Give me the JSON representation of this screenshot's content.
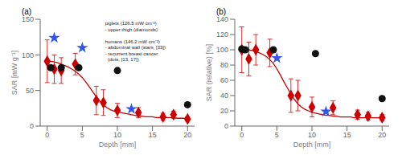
{
  "chart_data": [
    {
      "type": "line",
      "title": "(a)",
      "xlabel": "Depth [mm]",
      "ylabel": "SAR [mW g⁻¹]",
      "xlim": [
        -1,
        21
      ],
      "ylim": [
        0,
        150
      ],
      "xticks": [
        0,
        5,
        10,
        15,
        20
      ],
      "yticks": [
        0,
        50,
        100,
        150
      ],
      "annotation": "piglets (126.5 mW cm⁻²)\n- upper thigh (diamonds)\n\nhumans (146.2 mW cm⁻²)\n- abdominal wall (stars, [33])\n- recurrent breast cancer\n  (dots, [13, 17])",
      "series": [
        {
          "type": "line",
          "color": "#cc0000",
          "x": [
            0.0,
            0.3,
            0.6,
            1.0,
            1.5,
            2.0,
            2.5,
            3.0,
            3.5,
            4.0,
            4.5,
            5.0,
            5.5,
            6.0,
            6.5,
            7.0,
            7.5,
            8.0,
            8.5,
            9.0,
            9.5,
            10.0,
            10.5,
            11.0,
            11.5,
            12.0,
            12.5,
            13.0,
            13.5,
            14.0,
            14.5,
            15.0,
            15.5,
            16.0,
            16.5,
            17.0,
            17.5,
            18.0,
            18.5,
            19.0,
            19.5,
            20.0
          ],
          "values": [
            91,
            91,
            91,
            90,
            89,
            87,
            85,
            83,
            80,
            77,
            73,
            68,
            62,
            55,
            48,
            41,
            35,
            30,
            26,
            23,
            21,
            20,
            19,
            18,
            17,
            16,
            15,
            14,
            14,
            13,
            13,
            13,
            12,
            12,
            12,
            12,
            12,
            12,
            11,
            11,
            11,
            10
          ]
        },
        {
          "type": "scatter",
          "marker": "diamond",
          "color": "#cc0000",
          "x": [
            0.0,
            1.0,
            2.0,
            4.0,
            7.0,
            8.0,
            10.0,
            13.0,
            16.5,
            18.0,
            20.0
          ],
          "values": [
            91,
            80,
            78,
            87,
            36,
            33,
            22,
            19,
            13,
            16,
            10
          ],
          "yerr": [
            30,
            20,
            18,
            15,
            20,
            18,
            10,
            7,
            5,
            5,
            3
          ]
        },
        {
          "type": "scatter",
          "marker": "star",
          "color": "#3355ee",
          "x": [
            1.0,
            5.0,
            12.0
          ],
          "values": [
            124,
            110,
            24
          ]
        },
        {
          "type": "scatter",
          "marker": "circle",
          "color": "#111111",
          "x": [
            0.5,
            2.0,
            4.5,
            10.0,
            20.0
          ],
          "values": [
            82,
            82,
            82,
            78,
            30
          ]
        }
      ]
    },
    {
      "type": "line",
      "title": "(b)",
      "xlabel": "Depth [mm]",
      "ylabel": "SAR (relative) [%]",
      "xlim": [
        -1,
        21
      ],
      "ylim": [
        0,
        140
      ],
      "xticks": [
        0,
        5,
        10,
        15,
        20
      ],
      "yticks": [
        0,
        20,
        40,
        60,
        80,
        100,
        120,
        140
      ],
      "series": [
        {
          "type": "line",
          "color": "#cc0000",
          "x": [
            0.0,
            0.3,
            0.6,
            1.0,
            1.5,
            2.0,
            2.5,
            3.0,
            3.5,
            4.0,
            4.5,
            5.0,
            5.5,
            6.0,
            6.5,
            7.0,
            7.5,
            8.0,
            8.5,
            9.0,
            9.5,
            10.0,
            10.5,
            11.0,
            11.5,
            12.0,
            12.5,
            13.0,
            13.5,
            14.0,
            14.5,
            15.0,
            15.5,
            16.0,
            16.5,
            17.0,
            17.5,
            18.0,
            18.5,
            19.0,
            19.5,
            20.0
          ],
          "values": [
            100,
            100,
            100,
            100,
            99,
            98,
            96,
            94,
            91,
            87,
            82,
            75,
            67,
            58,
            50,
            42,
            35,
            29,
            25,
            22,
            20,
            18,
            17,
            16,
            15,
            14,
            14,
            13,
            13,
            12,
            12,
            12,
            12,
            11,
            11,
            11,
            11,
            11,
            11,
            11,
            11,
            11
          ]
        },
        {
          "type": "scatter",
          "marker": "diamond",
          "color": "#cc0000",
          "x": [
            0.0,
            1.0,
            2.0,
            4.0,
            7.0,
            8.0,
            10.0,
            13.0,
            16.5,
            18.0,
            20.0
          ],
          "values": [
            100,
            88,
            100,
            96,
            40,
            40,
            25,
            24,
            15,
            13,
            11
          ],
          "yerr": [
            30,
            22,
            20,
            18,
            22,
            20,
            13,
            9,
            6,
            5,
            4
          ]
        },
        {
          "type": "scatter",
          "marker": "star",
          "color": "#3355ee",
          "x": [
            5.0,
            12.0
          ],
          "values": [
            89,
            19
          ]
        },
        {
          "type": "scatter",
          "marker": "circle",
          "color": "#111111",
          "x": [
            0.0,
            0.5,
            4.5,
            10.5,
            20.0
          ],
          "values": [
            101,
            100,
            100,
            95,
            36
          ]
        }
      ]
    }
  ]
}
